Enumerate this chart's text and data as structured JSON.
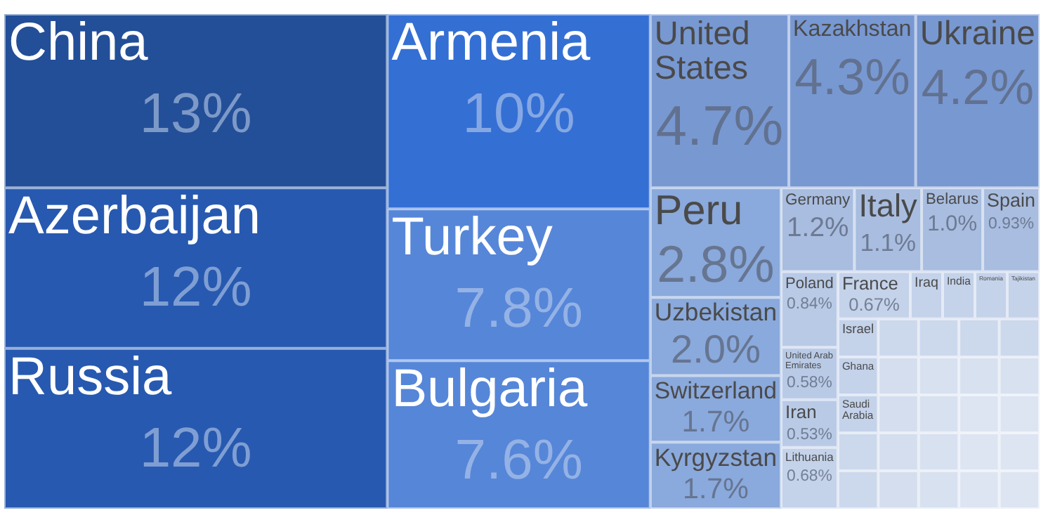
{
  "chart_data": {
    "type": "other",
    "categories": [
      "China",
      "Azerbaijan",
      "Russia",
      "Armenia",
      "Turkey",
      "Bulgaria",
      "United States",
      "Kazakhstan",
      "Ukraine",
      "Peru",
      "Uzbekistan",
      "Switzerland",
      "Kyrgyzstan",
      "Germany",
      "Italy",
      "Belarus",
      "Spain",
      "Poland",
      "United Arab Emirates",
      "Iran",
      "Lithuania",
      "France",
      "Iraq",
      "India",
      "Romania",
      "Tajikistan",
      "Israel",
      "Ghana",
      "Saudi Arabia",
      null,
      null,
      null,
      null,
      null,
      null,
      null,
      null,
      null,
      null,
      null,
      null,
      null,
      null,
      null,
      null,
      null,
      null,
      null,
      null,
      null,
      null
    ],
    "values": [
      13,
      12,
      12,
      10,
      7.8,
      7.6,
      4.7,
      4.3,
      4.2,
      2.8,
      2.0,
      1.7,
      1.7,
      1.2,
      1.1,
      1.0,
      0.93,
      0.84,
      0.58,
      0.53,
      0.68,
      0.67,
      null,
      null,
      null,
      null,
      null,
      null,
      null,
      null,
      null,
      null,
      null,
      null,
      null,
      null,
      null,
      null,
      null,
      null,
      null,
      null,
      null,
      null,
      null,
      null,
      null,
      null,
      null,
      null,
      null
    ],
    "value_labels": [
      "13%",
      "12%",
      "12%",
      "10%",
      "7.8%",
      "7.6%",
      "4.7%",
      "4.3%",
      "4.2%",
      "2.8%",
      "2.0%",
      "1.7%",
      "1.7%",
      "1.2%",
      "1.1%",
      "1.0%",
      "0.93%",
      "0.84%",
      "0.58%",
      "0.53%",
      "0.68%",
      "0.67%",
      null,
      null,
      null,
      null,
      null,
      null,
      null,
      null,
      null,
      null,
      null,
      null,
      null,
      null,
      null,
      null,
      null,
      null,
      null,
      null,
      null,
      null,
      null,
      null,
      null,
      null,
      null,
      null,
      null
    ],
    "colors": [
      "#234f98",
      "#2759b0",
      "#2759b0",
      "#346fd4",
      "#5686d8",
      "#5686d8",
      "#7898d2",
      "#7898d2",
      "#7898d2",
      "#8aa9dc",
      "#8aa9dc",
      "#8aa9dc",
      "#8aa9dc",
      "#a8bde0",
      "#a8bde0",
      "#a8bde0",
      "#a8bde0",
      "#b8cae6",
      "#b8cae6",
      "#b8cae6",
      "#c4d2ea",
      "#c4d2ea",
      "#c4d2ea",
      "#c4d2ea",
      "#c4d2ea",
      "#c4d2ea",
      "#c4d2ea",
      "#c4d2ea",
      "#c4d2ea",
      "#ccd8ec",
      "#ccd8ec",
      "#ccd8ec",
      "#ccd8ec",
      "#ccd8ec",
      "#ccd8ec",
      "#d4deee",
      "#d4deee",
      "#d4deee",
      "#d4deee",
      "#d8e1f0",
      "#d8e1f0",
      "#d8e1f0",
      "#d8e1f0",
      "#d8e1f0",
      "#d8e1f0",
      "#dde5f2",
      "#dde5f2",
      "#dde5f2",
      "#dde5f2",
      "#dde5f2",
      "#dde5f2"
    ]
  }
}
